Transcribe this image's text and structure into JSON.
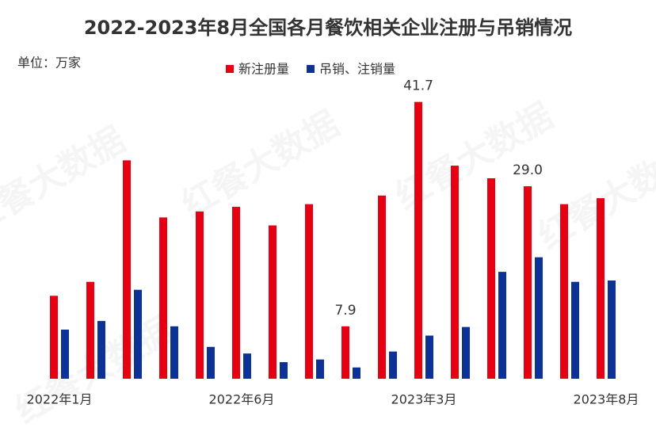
{
  "chart_data": {
    "type": "bar",
    "title": "2022-2023年8月全国各月餐饮相关企业注册与吊销情况",
    "unit": "单位：万家",
    "watermark": "红餐大数据",
    "categories": [
      "2022年1月",
      null,
      null,
      null,
      null,
      "2022年6月",
      null,
      null,
      null,
      null,
      "2023年3月",
      null,
      null,
      null,
      null,
      "2023年8月"
    ],
    "series": [
      {
        "name": "新注册量",
        "color": "#e60012",
        "values": [
          12.5,
          14.6,
          32.9,
          24.3,
          25.2,
          25.9,
          23.1,
          26.3,
          7.9,
          27.6,
          41.7,
          32.1,
          30.2,
          29.0,
          26.3,
          27.2
        ],
        "value_labels": [
          null,
          null,
          null,
          null,
          null,
          null,
          null,
          null,
          "7.9",
          null,
          "41.7",
          null,
          null,
          "29.0",
          null,
          null
        ]
      },
      {
        "name": "吊销、注销量",
        "color": "#0d3295",
        "values": [
          7.4,
          8.7,
          13.4,
          7.9,
          4.8,
          3.8,
          2.5,
          2.9,
          1.7,
          4.1,
          6.5,
          7.8,
          16.1,
          18.3,
          14.6,
          14.8
        ]
      }
    ],
    "ylim": [
      0,
      45
    ],
    "grid": false
  }
}
